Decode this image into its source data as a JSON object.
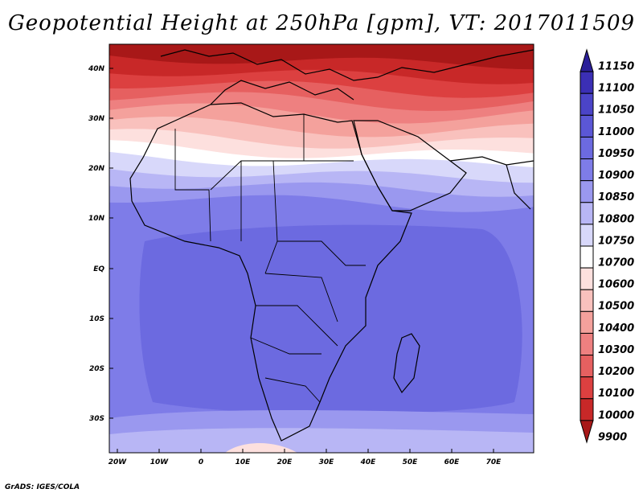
{
  "title": "Geopotential Height at 250hPa [gpm], VT: 2017011509",
  "credit": "GrADS: IGES/COLA",
  "lat_labels": [
    "40N",
    "30N",
    "20N",
    "10N",
    "EQ",
    "10S",
    "20S",
    "30S"
  ],
  "lon_labels": [
    "20W",
    "10W",
    "0",
    "10E",
    "20E",
    "30E",
    "40E",
    "50E",
    "60E",
    "70E"
  ],
  "colorbar": {
    "levels": [
      "11150",
      "11100",
      "11050",
      "11000",
      "10950",
      "10900",
      "10850",
      "10800",
      "10750",
      "10700",
      "10600",
      "10500",
      "10400",
      "10300",
      "10200",
      "10100",
      "10000",
      "9900"
    ],
    "colors": [
      "#2b1f99",
      "#3b2fb5",
      "#4b44c8",
      "#5b57d6",
      "#6c6ae0",
      "#7e7ce8",
      "#9a98ef",
      "#b8b6f5",
      "#d8d8fa",
      "#ffffff",
      "#fde0de",
      "#f9c1bd",
      "#f4a19c",
      "#ee8080",
      "#e66060",
      "#dc4040",
      "#c82828",
      "#a81818"
    ]
  },
  "map": {
    "bands": [
      {
        "color": "#a81818"
      },
      {
        "color": "#c82828"
      },
      {
        "color": "#dc4040"
      },
      {
        "color": "#e66060"
      },
      {
        "color": "#ee8080"
      },
      {
        "color": "#f4a19c"
      },
      {
        "color": "#f9c1bd"
      },
      {
        "color": "#fde0de"
      },
      {
        "color": "#ffffff"
      },
      {
        "color": "#d8d8fa"
      },
      {
        "color": "#b8b6f5"
      },
      {
        "color": "#9a98ef"
      },
      {
        "color": "#7e7ce8"
      },
      {
        "color": "#6c6ae0"
      }
    ]
  }
}
